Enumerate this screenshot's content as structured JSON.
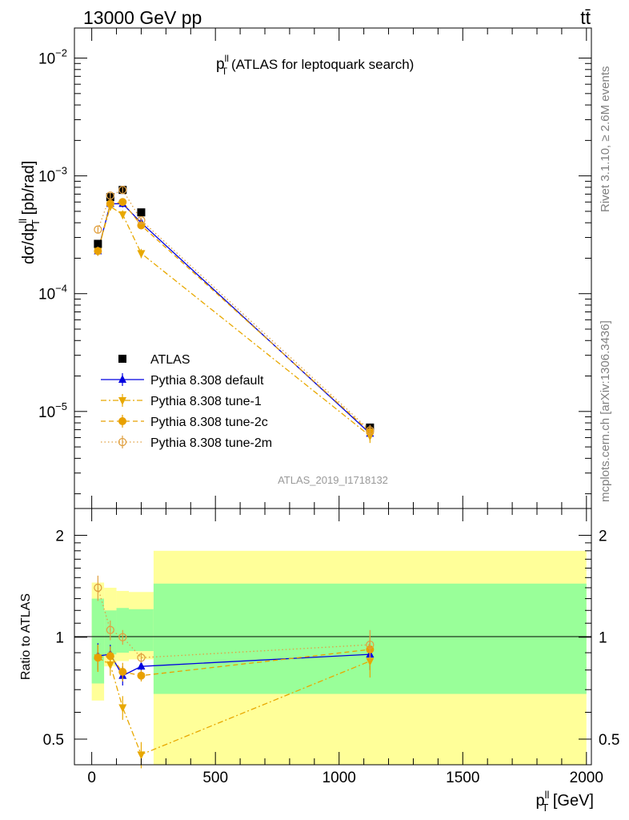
{
  "header": {
    "energy_label": "13000 GeV pp",
    "process_label": "tt̄"
  },
  "side": {
    "rivet_label": "Rivet 3.1.10, ≥ 2.6M events",
    "url_label": "mcplots.cern.ch [arXiv:1306.3436]"
  },
  "chart_data": [
    {
      "type": "line",
      "title_main": "p",
      "title_sup": "ll",
      "title_sub": "T",
      "title_rest": " (ATLAS for leptoquark search)",
      "ylabel_main": "dσ/dp",
      "ylabel_sup": "ll",
      "ylabel_sub": "T",
      "ylabel_rest": " [pb/rad]",
      "yscale": "log",
      "ylim": [
        1.5e-06,
        0.018
      ],
      "xlim": [
        -70,
        2020
      ],
      "yticks": [
        {
          "v": 1e-05,
          "base": "10",
          "exp": "−5"
        },
        {
          "v": 0.0001,
          "base": "10",
          "exp": "−4"
        },
        {
          "v": 0.001,
          "base": "10",
          "exp": "−3"
        },
        {
          "v": 0.01,
          "base": "10",
          "exp": "−2"
        }
      ],
      "watermark": "ATLAS_2019_I1718132",
      "legend_position": "bottom-left",
      "x": [
        25,
        75,
        125,
        200,
        1125
      ],
      "series": [
        {
          "name": "ATLAS",
          "color": "#000000",
          "marker": "square",
          "dash": "none",
          "values": [
            0.000265,
            0.00066,
            0.00076,
            0.00049,
            7.3e-06
          ]
        },
        {
          "name": "Pythia 8.308 default",
          "color": "#0000e0",
          "marker": "triangle-up",
          "dash": "solid",
          "values": [
            0.00023,
            0.00058,
            0.00058,
            0.0004,
            6.5e-06
          ],
          "err": [
            2e-05,
            4e-05,
            4e-05,
            2e-05,
            8e-07
          ]
        },
        {
          "name": "Pythia 8.308 tune-1",
          "color": "#e8a800",
          "marker": "triangle-down",
          "dash": "7,3,2,3",
          "values": [
            0.00023,
            0.00055,
            0.00047,
            0.00022,
            6.2e-06
          ],
          "err": [
            2e-05,
            4e-05,
            4e-05,
            2e-05,
            8e-07
          ]
        },
        {
          "name": "Pythia 8.308 tune-2c",
          "color": "#e8a000",
          "marker": "circle",
          "dash": "6,4",
          "values": [
            0.00023,
            0.00058,
            0.0006,
            0.00038,
            6.7e-06
          ],
          "err": [
            2e-05,
            4e-05,
            4e-05,
            2e-05,
            8e-07
          ]
        },
        {
          "name": "Pythia 8.308 tune-2m",
          "color": "#e0a040",
          "marker": "circle-open",
          "dash": "1.5,3",
          "values": [
            0.00035,
            0.00068,
            0.00076,
            0.00042,
            6.9e-06
          ],
          "err": [
            2e-05,
            4e-05,
            4e-05,
            2e-05,
            8e-07
          ]
        }
      ]
    },
    {
      "type": "line",
      "ylabel": "Ratio to ATLAS",
      "xlabel_main": "p",
      "xlabel_sup": "ll",
      "xlabel_sub": "T",
      "xlabel_rest": " [GeV]",
      "yscale": "log",
      "ylim": [
        0.42,
        2.4
      ],
      "xlim": [
        -70,
        2020
      ],
      "xticks": [
        "0",
        "500",
        "1000",
        "1500",
        "2000"
      ],
      "yticks": [
        {
          "v": 0.5,
          "label": "0.5"
        },
        {
          "v": 1,
          "label": "1"
        },
        {
          "v": 2,
          "label": "2"
        }
      ],
      "bands": [
        {
          "x0": 0,
          "x1": 50,
          "yellow": [
            0.65,
            1.45
          ],
          "green": [
            0.73,
            1.3
          ]
        },
        {
          "x0": 50,
          "x1": 100,
          "yellow": [
            0.82,
            1.4
          ],
          "green": [
            0.89,
            1.2
          ]
        },
        {
          "x0": 100,
          "x1": 150,
          "yellow": [
            0.85,
            1.37
          ],
          "green": [
            0.9,
            1.22
          ]
        },
        {
          "x0": 150,
          "x1": 250,
          "yellow": [
            0.86,
            1.36
          ],
          "green": [
            0.91,
            1.21
          ]
        },
        {
          "x0": 250,
          "x1": 2000,
          "yellow": [
            0.3,
            1.8
          ],
          "green": [
            0.68,
            1.44
          ]
        }
      ],
      "x": [
        25,
        75,
        125,
        200,
        1125
      ],
      "series": [
        {
          "name": "Pythia 8.308 default",
          "color": "#0000e0",
          "marker": "triangle-up",
          "dash": "solid",
          "values": [
            0.88,
            0.89,
            0.77,
            0.82,
            0.89
          ],
          "err": [
            0.08,
            0.06,
            0.05,
            0.03,
            0.09
          ]
        },
        {
          "name": "Pythia 8.308 tune-1",
          "color": "#e8a800",
          "marker": "triangle-down",
          "dash": "7,3,2,3",
          "values": [
            0.87,
            0.83,
            0.62,
            0.45,
            0.85
          ],
          "err": [
            0.08,
            0.06,
            0.05,
            0.04,
            0.09
          ]
        },
        {
          "name": "Pythia 8.308 tune-2c",
          "color": "#e8a000",
          "marker": "circle",
          "dash": "6,4",
          "values": [
            0.87,
            0.88,
            0.79,
            0.77,
            0.92
          ],
          "err": [
            0.08,
            0.06,
            0.05,
            0.03,
            0.09
          ]
        },
        {
          "name": "Pythia 8.308 tune-2m",
          "color": "#e0a040",
          "marker": "circle-open",
          "dash": "1.5,3",
          "values": [
            1.4,
            1.05,
            1.0,
            0.87,
            0.95
          ],
          "err": [
            0.12,
            0.07,
            0.05,
            0.03,
            0.1
          ]
        }
      ]
    }
  ]
}
